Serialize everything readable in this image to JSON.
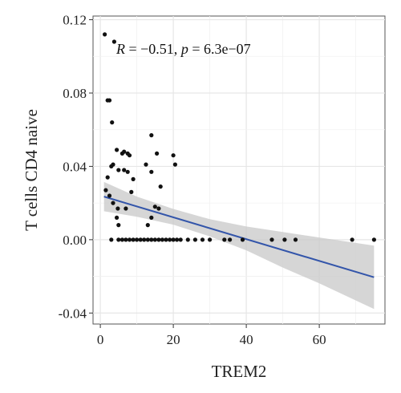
{
  "chart_data": {
    "type": "scatter",
    "title": "",
    "xlabel": "TREM2",
    "ylabel": "T cells CD4 naive",
    "xlim": [
      -2,
      78
    ],
    "ylim": [
      -0.046,
      0.122
    ],
    "x_ticks": [
      0,
      20,
      40,
      60
    ],
    "x_tick_labels": [
      "0",
      "20",
      "40",
      "60"
    ],
    "y_ticks": [
      -0.04,
      0.0,
      0.04,
      0.08,
      0.12
    ],
    "y_tick_labels": [
      "-0.04",
      "0.00",
      "0.04",
      "0.08",
      "0.12"
    ],
    "grid": true,
    "annotation": {
      "r_symbol": "R",
      "r_text": " = −0.51, ",
      "p_symbol": "p",
      "p_text": " = 6.3e−07"
    },
    "regression": {
      "x": [
        1,
        75
      ],
      "y": [
        0.0235,
        -0.0205
      ],
      "color": "#3355aa"
    },
    "confidence_band": {
      "x": [
        1,
        10,
        20,
        30,
        40,
        50,
        60,
        75
      ],
      "upper": [
        0.0315,
        0.0235,
        0.0168,
        0.0112,
        0.0072,
        0.0042,
        0.0012,
        -0.0032
      ],
      "lower": [
        0.0155,
        0.0125,
        0.0082,
        0.0018,
        -0.0058,
        -0.0152,
        -0.0238,
        -0.0378
      ],
      "color": "#c8c8c8"
    },
    "points": {
      "color": "#111111",
      "x": [
        1.2,
        3.8,
        2.0,
        2.5,
        3.2,
        4.5,
        6.0,
        6.5,
        7.5,
        8.0,
        2.0,
        3.0,
        3.5,
        5.0,
        6.5,
        7.5,
        8.5,
        9.0,
        12.5,
        14.0,
        15.5,
        20.0,
        14.0,
        16.5,
        20.5,
        1.5,
        2.5,
        3.5,
        4.8,
        7.0,
        15.0,
        16.0,
        4.5,
        14.0,
        5.0,
        13.0,
        3.0,
        5.0,
        6.0,
        7.0,
        8.0,
        9.0,
        10.0,
        11.0,
        12.0,
        13.0,
        14.0,
        15.0,
        16.0,
        17.0,
        18.0,
        19.0,
        20.0,
        21.0,
        22.0,
        24.0,
        26.0,
        28.0,
        30.0,
        34.0,
        35.5,
        39.0,
        47.0,
        50.5,
        53.5,
        69.0,
        75.0
      ],
      "y": [
        0.112,
        0.108,
        0.076,
        0.076,
        0.064,
        0.049,
        0.047,
        0.048,
        0.047,
        0.046,
        0.034,
        0.04,
        0.041,
        0.038,
        0.038,
        0.037,
        0.026,
        0.033,
        0.041,
        0.057,
        0.047,
        0.046,
        0.037,
        0.029,
        0.041,
        0.027,
        0.024,
        0.02,
        0.017,
        0.017,
        0.018,
        0.017,
        0.012,
        0.012,
        0.008,
        0.008,
        0.0,
        0.0,
        0.0,
        0.0,
        0.0,
        0.0,
        0.0,
        0.0,
        0.0,
        0.0,
        0.0,
        0.0,
        0.0,
        0.0,
        0.0,
        0.0,
        0.0,
        0.0,
        0.0,
        0.0,
        0.0,
        0.0,
        0.0,
        0.0,
        0.0,
        0.0,
        0.0,
        0.0,
        0.0,
        0.0,
        0.0
      ]
    }
  }
}
